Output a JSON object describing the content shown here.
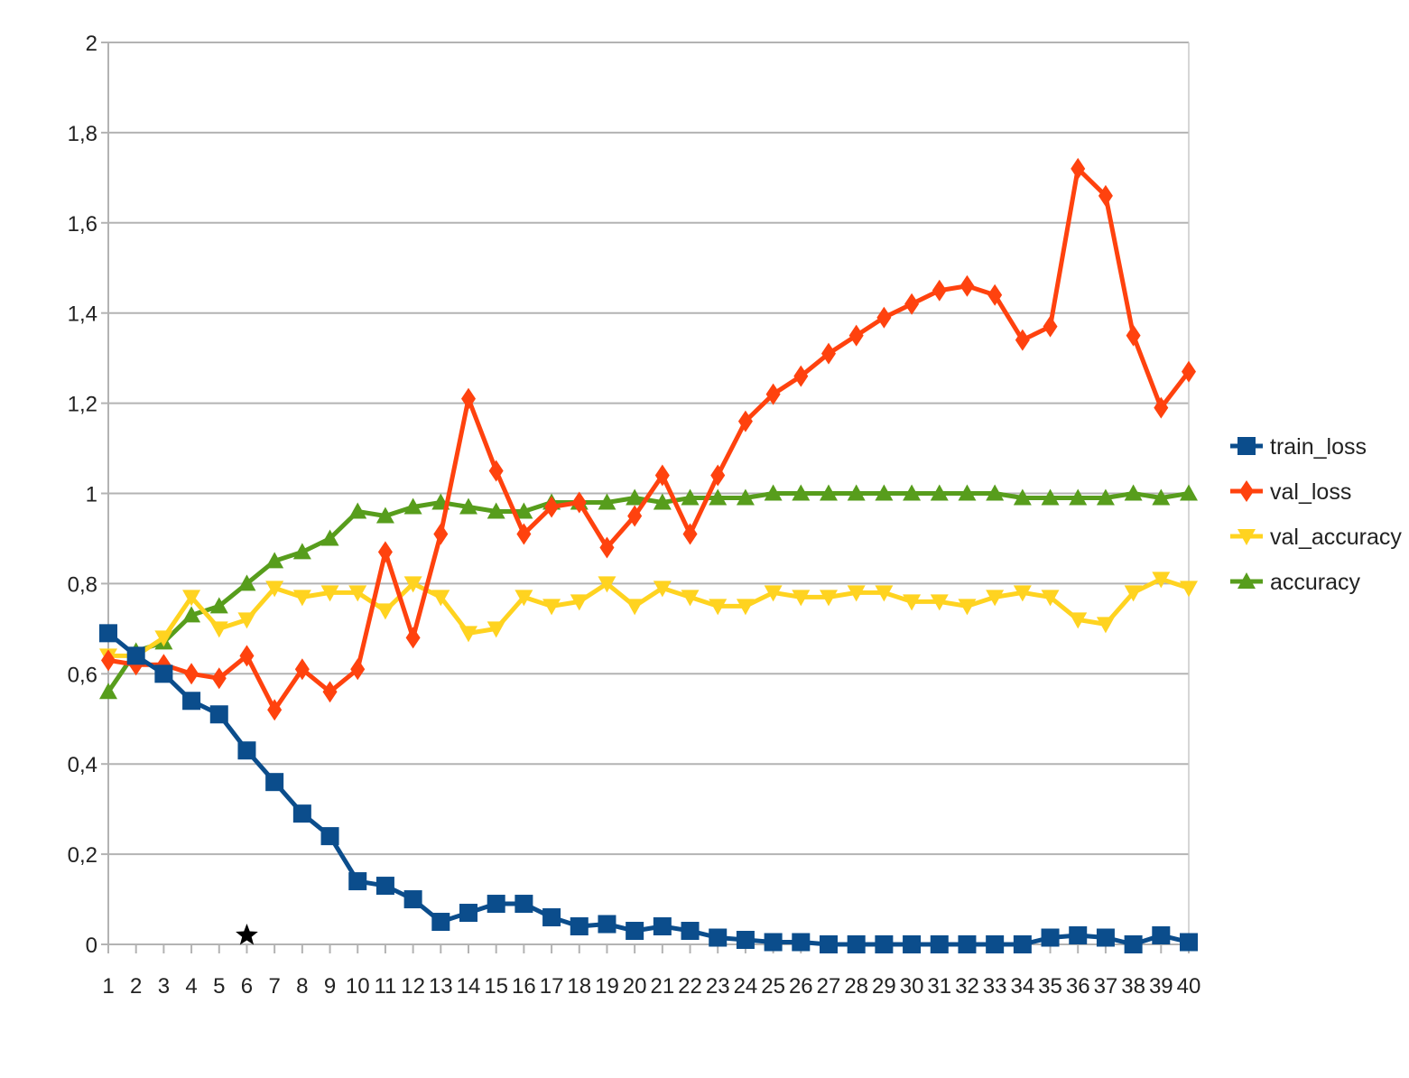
{
  "chart_data": {
    "type": "line",
    "title": "",
    "xlabel": "",
    "ylabel": "",
    "x": [
      1,
      2,
      3,
      4,
      5,
      6,
      7,
      8,
      9,
      10,
      11,
      12,
      13,
      14,
      15,
      16,
      17,
      18,
      19,
      20,
      21,
      22,
      23,
      24,
      25,
      26,
      27,
      28,
      29,
      30,
      31,
      32,
      33,
      34,
      35,
      36,
      37,
      38,
      39,
      40
    ],
    "ylim": [
      0,
      2
    ],
    "y_ticks": [
      "0",
      "0,2",
      "0,4",
      "0,6",
      "0,8",
      "1",
      "1,2",
      "1,4",
      "1,6",
      "1,8",
      "2"
    ],
    "x_ticks": [
      "1",
      "2",
      "3",
      "4",
      "5",
      "6",
      "7",
      "8",
      "9",
      "10",
      "11",
      "12",
      "13",
      "14",
      "15",
      "16",
      "17",
      "18",
      "19",
      "20",
      "21",
      "22",
      "23",
      "24",
      "25",
      "26",
      "27",
      "28",
      "29",
      "30",
      "31",
      "32",
      "33",
      "34",
      "35",
      "36",
      "37",
      "38",
      "39",
      "40"
    ],
    "grid": true,
    "legend_position": "right",
    "star_marker_x": 6,
    "series": [
      {
        "name": "train_loss",
        "color": "#0b4d8c",
        "marker": "square",
        "values": [
          0.69,
          0.64,
          0.6,
          0.54,
          0.51,
          0.43,
          0.36,
          0.29,
          0.24,
          0.14,
          0.13,
          0.1,
          0.05,
          0.07,
          0.09,
          0.09,
          0.06,
          0.04,
          0.045,
          0.03,
          0.04,
          0.03,
          0.015,
          0.01,
          0.005,
          0.005,
          0.0,
          0.0,
          0.0,
          0.0,
          0.0,
          0.0,
          0.0,
          0.0,
          0.015,
          0.02,
          0.015,
          0.0,
          0.02,
          0.005
        ]
      },
      {
        "name": "val_loss",
        "color": "#ff420e",
        "marker": "diamond",
        "values": [
          0.63,
          0.62,
          0.62,
          0.6,
          0.59,
          0.64,
          0.52,
          0.61,
          0.56,
          0.61,
          0.87,
          0.68,
          0.91,
          1.21,
          1.05,
          0.91,
          0.97,
          0.98,
          0.88,
          0.95,
          1.04,
          0.91,
          1.04,
          1.16,
          1.22,
          1.26,
          1.31,
          1.35,
          1.39,
          1.42,
          1.45,
          1.46,
          1.44,
          1.34,
          1.37,
          1.72,
          1.66,
          1.35,
          1.19,
          1.27
        ]
      },
      {
        "name": "val_accuracy",
        "color": "#ffd320",
        "marker": "triangle-down",
        "values": [
          0.64,
          0.64,
          0.68,
          0.77,
          0.7,
          0.72,
          0.79,
          0.77,
          0.78,
          0.78,
          0.74,
          0.8,
          0.77,
          0.69,
          0.7,
          0.77,
          0.75,
          0.76,
          0.8,
          0.75,
          0.79,
          0.77,
          0.75,
          0.75,
          0.78,
          0.77,
          0.77,
          0.78,
          0.78,
          0.76,
          0.76,
          0.75,
          0.77,
          0.78,
          0.77,
          0.72,
          0.71,
          0.78,
          0.81,
          0.79
        ]
      },
      {
        "name": "accuracy",
        "color": "#579d1c",
        "marker": "triangle-up",
        "values": [
          0.56,
          0.65,
          0.67,
          0.73,
          0.75,
          0.8,
          0.85,
          0.87,
          0.9,
          0.96,
          0.95,
          0.97,
          0.98,
          0.97,
          0.96,
          0.96,
          0.98,
          0.98,
          0.98,
          0.99,
          0.98,
          0.99,
          0.99,
          0.99,
          1.0,
          1.0,
          1.0,
          1.0,
          1.0,
          1.0,
          1.0,
          1.0,
          1.0,
          0.99,
          0.99,
          0.99,
          0.99,
          1.0,
          0.99,
          1.0
        ]
      }
    ]
  }
}
